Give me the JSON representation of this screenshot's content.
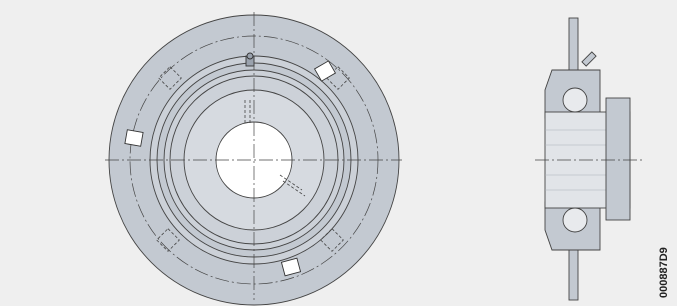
{
  "drawing": {
    "code": "000887D9"
  }
}
